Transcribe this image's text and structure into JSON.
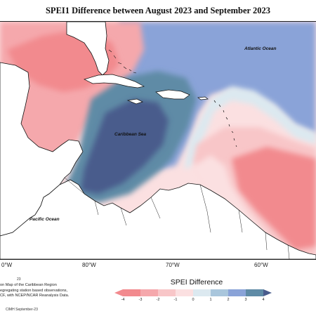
{
  "map": {
    "title": "SPEI1 Difference between August 2023 and September 2023",
    "labels": {
      "atlantic": "Atlantic Ocean",
      "caribbean": "Caribbean Sea",
      "pacific": "Pacific Ocean"
    },
    "longitude_labels": [
      "0°W",
      "80°W",
      "70°W",
      "60°W"
    ]
  },
  "legend": {
    "title": "SPEI Difference",
    "ticks": [
      "-4",
      "-3",
      "-2",
      "-1",
      "0",
      "1",
      "2",
      "3",
      "4"
    ],
    "colors": [
      "#f28a8e",
      "#f5a8ac",
      "#f8c6c8",
      "#fbe0e1",
      "#dce9f0",
      "#a9c6dc",
      "#8aa3d8",
      "#5f8ba6",
      "#4a5c8c"
    ]
  },
  "footer": {
    "number": "23",
    "caption_lines": [
      "on Map of the Caribbean Region",
      "egregating station based observations,",
      "CF, with NCEP/NCAR Reanalysis Data."
    ],
    "credit": "CIMH September-23"
  }
}
